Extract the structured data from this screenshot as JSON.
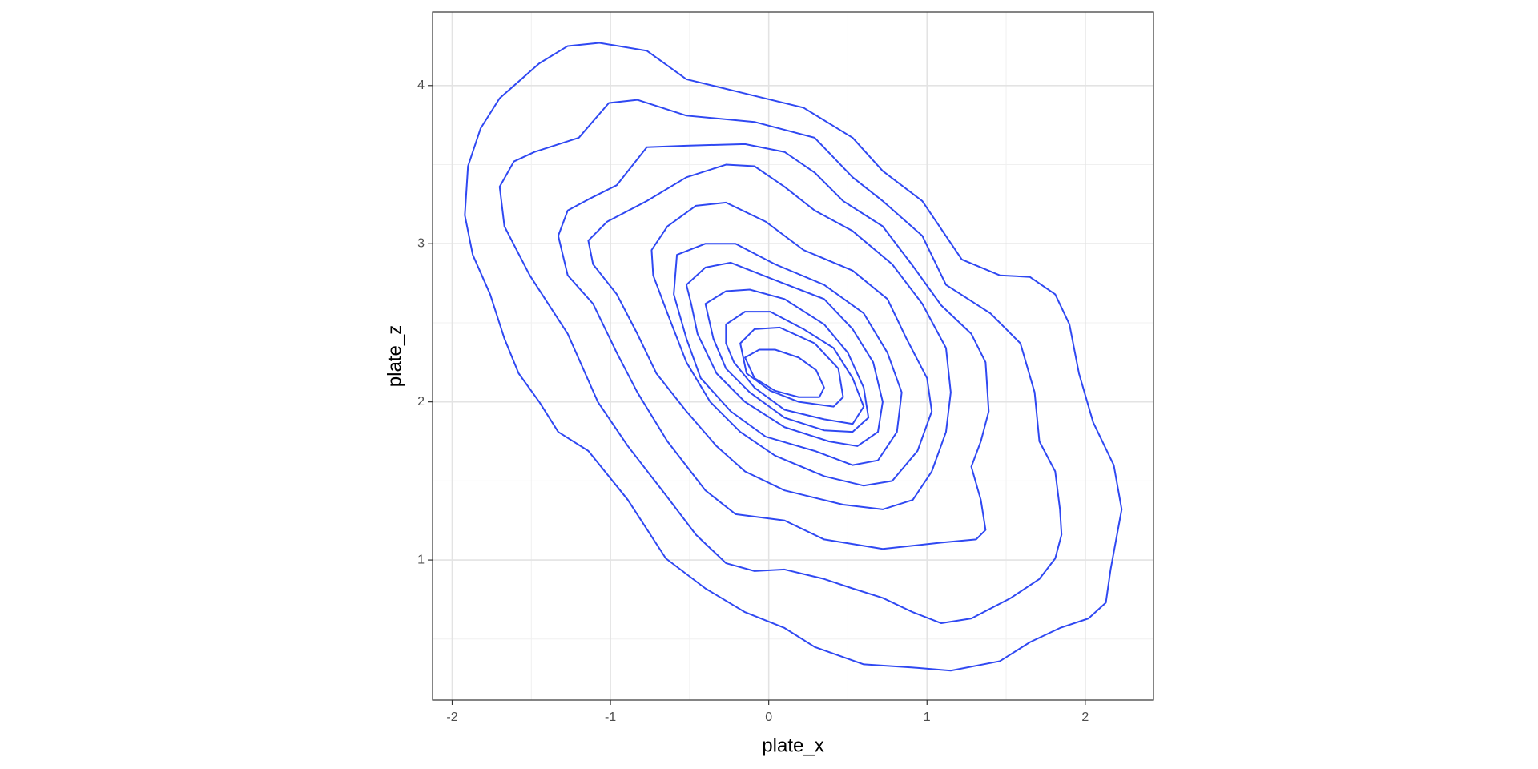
{
  "chart_data": {
    "type": "contour",
    "x_label": "plate_x",
    "y_label": "plate_z",
    "color": "#2f48f2",
    "xlim": [
      -2.124,
      2.431
    ],
    "ylim": [
      0.114,
      4.465
    ],
    "xticks": [
      -2,
      -1,
      0,
      1,
      2
    ],
    "yticks": [
      1,
      2,
      3,
      4
    ],
    "xminor": [
      -1.5,
      -0.5,
      0.5,
      1.5
    ],
    "yminor": [
      0.5,
      1.5,
      2.5,
      3.5
    ],
    "grid": true,
    "series": [
      {
        "x": [
          -1.07,
          -0.77,
          -0.52,
          -0.15,
          0.22,
          0.53,
          0.72,
          0.97,
          1.22,
          1.46,
          1.65,
          1.81,
          1.9,
          1.96,
          2.05,
          2.18,
          2.23,
          2.16,
          2.13,
          2.02,
          1.84,
          1.65,
          1.46,
          1.15,
          0.91,
          0.6,
          0.29,
          0.1,
          -0.15,
          -0.4,
          -0.65,
          -0.89,
          -1.14,
          -1.33,
          -1.45,
          -1.58,
          -1.67,
          -1.76,
          -1.87,
          -1.92,
          -1.9,
          -1.82,
          -1.7,
          -1.45,
          -1.27
        ],
        "values": [
          4.27,
          4.22,
          4.04,
          3.95,
          3.86,
          3.67,
          3.46,
          3.27,
          2.9,
          2.8,
          2.79,
          2.68,
          2.49,
          2.18,
          1.87,
          1.6,
          1.32,
          0.94,
          0.73,
          0.63,
          0.57,
          0.48,
          0.36,
          0.3,
          0.32,
          0.34,
          0.45,
          0.57,
          0.67,
          0.82,
          1.01,
          1.38,
          1.69,
          1.81,
          2.0,
          2.18,
          2.4,
          2.68,
          2.93,
          3.18,
          3.49,
          3.73,
          3.92,
          4.14,
          4.25
        ]
      },
      {
        "x": [
          -1.01,
          -0.83,
          -0.52,
          -0.09,
          0.29,
          0.53,
          0.72,
          0.97,
          1.12,
          1.4,
          1.59,
          1.68,
          1.71,
          1.81,
          1.84,
          1.85,
          1.81,
          1.71,
          1.53,
          1.28,
          1.09,
          0.91,
          0.72,
          0.53,
          0.35,
          0.1,
          -0.09,
          -0.27,
          -0.46,
          -0.65,
          -0.89,
          -1.08,
          -1.27,
          -1.51,
          -1.67,
          -1.7,
          -1.61,
          -1.48,
          -1.2
        ],
        "values": [
          3.89,
          3.91,
          3.81,
          3.77,
          3.67,
          3.42,
          3.27,
          3.05,
          2.74,
          2.56,
          2.37,
          2.06,
          1.75,
          1.56,
          1.32,
          1.16,
          1.01,
          0.88,
          0.76,
          0.63,
          0.6,
          0.67,
          0.76,
          0.82,
          0.88,
          0.94,
          0.93,
          0.98,
          1.16,
          1.41,
          1.72,
          2.0,
          2.43,
          2.8,
          3.11,
          3.36,
          3.52,
          3.58,
          3.67
        ]
      },
      {
        "x": [
          -0.77,
          -0.52,
          -0.15,
          0.1,
          0.29,
          0.47,
          0.72,
          0.91,
          1.09,
          1.28,
          1.37,
          1.39,
          1.34,
          1.28,
          1.34,
          1.37,
          1.31,
          1.09,
          0.72,
          0.35,
          0.1,
          -0.21,
          -0.4,
          -0.64,
          -0.83,
          -0.96,
          -1.11,
          -1.27,
          -1.33,
          -1.27,
          -1.14,
          -0.96
        ],
        "values": [
          3.61,
          3.62,
          3.63,
          3.58,
          3.45,
          3.27,
          3.11,
          2.86,
          2.61,
          2.43,
          2.25,
          1.94,
          1.75,
          1.59,
          1.38,
          1.19,
          1.13,
          1.11,
          1.07,
          1.13,
          1.25,
          1.29,
          1.44,
          1.75,
          2.06,
          2.31,
          2.62,
          2.8,
          3.05,
          3.21,
          3.28,
          3.37
        ]
      },
      {
        "x": [
          -0.52,
          -0.27,
          -0.09,
          0.1,
          0.29,
          0.53,
          0.78,
          0.97,
          1.12,
          1.15,
          1.12,
          1.03,
          0.91,
          0.72,
          0.47,
          0.1,
          -0.15,
          -0.33,
          -0.52,
          -0.71,
          -0.83,
          -0.96,
          -1.11,
          -1.14,
          -1.02,
          -0.77
        ],
        "values": [
          3.42,
          3.5,
          3.49,
          3.36,
          3.21,
          3.08,
          2.87,
          2.62,
          2.34,
          2.06,
          1.81,
          1.56,
          1.38,
          1.32,
          1.35,
          1.44,
          1.56,
          1.72,
          1.94,
          2.18,
          2.43,
          2.68,
          2.87,
          3.02,
          3.14,
          3.27
        ]
      },
      {
        "x": [
          -0.64,
          -0.46,
          -0.27,
          -0.02,
          0.22,
          0.53,
          0.75,
          0.87,
          1.0,
          1.03,
          0.94,
          0.78,
          0.6,
          0.35,
          0.04,
          -0.18,
          -0.37,
          -0.52,
          -0.64,
          -0.73,
          -0.74
        ],
        "values": [
          3.11,
          3.24,
          3.26,
          3.14,
          2.96,
          2.83,
          2.65,
          2.4,
          2.15,
          1.94,
          1.69,
          1.5,
          1.47,
          1.53,
          1.66,
          1.81,
          2.0,
          2.25,
          2.56,
          2.8,
          2.96
        ]
      },
      {
        "x": [
          -0.58,
          -0.4,
          -0.21,
          0.04,
          0.35,
          0.6,
          0.75,
          0.84,
          0.81,
          0.69,
          0.53,
          0.29,
          -0.02,
          -0.24,
          -0.43,
          -0.52,
          -0.6
        ],
        "values": [
          2.93,
          3.0,
          3.0,
          2.87,
          2.74,
          2.56,
          2.31,
          2.06,
          1.81,
          1.63,
          1.6,
          1.69,
          1.78,
          1.94,
          2.15,
          2.4,
          2.68
        ]
      },
      {
        "x": [
          -0.52,
          -0.4,
          -0.24,
          0.04,
          0.35,
          0.53,
          0.66,
          0.72,
          0.69,
          0.56,
          0.38,
          0.1,
          -0.15,
          -0.33,
          -0.45,
          -0.49
        ],
        "values": [
          2.74,
          2.85,
          2.88,
          2.77,
          2.65,
          2.46,
          2.25,
          2.0,
          1.81,
          1.72,
          1.75,
          1.84,
          2.0,
          2.18,
          2.43,
          2.62
        ]
      },
      {
        "x": [
          -0.4,
          -0.27,
          -0.12,
          0.1,
          0.35,
          0.5,
          0.6,
          0.63,
          0.53,
          0.35,
          0.1,
          -0.12,
          -0.27,
          -0.35
        ],
        "values": [
          2.62,
          2.7,
          2.71,
          2.65,
          2.49,
          2.31,
          2.09,
          1.9,
          1.81,
          1.82,
          1.9,
          2.06,
          2.21,
          2.4
        ]
      },
      {
        "x": [
          -0.27,
          -0.15,
          0.01,
          0.22,
          0.41,
          0.53,
          0.6,
          0.53,
          0.35,
          0.1,
          -0.09,
          -0.22,
          -0.27
        ],
        "values": [
          2.49,
          2.57,
          2.57,
          2.46,
          2.34,
          2.15,
          1.97,
          1.86,
          1.89,
          1.95,
          2.09,
          2.25,
          2.37
        ]
      },
      {
        "x": [
          -0.18,
          -0.09,
          0.07,
          0.29,
          0.44,
          0.47,
          0.41,
          0.19,
          0.01,
          -0.14
        ],
        "values": [
          2.37,
          2.46,
          2.47,
          2.37,
          2.21,
          2.03,
          1.97,
          2.0,
          2.07,
          2.18
        ]
      },
      {
        "x": [
          -0.15,
          -0.06,
          0.04,
          0.19,
          0.3,
          0.35,
          0.32,
          0.19,
          0.04,
          -0.09
        ],
        "values": [
          2.28,
          2.33,
          2.33,
          2.28,
          2.2,
          2.09,
          2.03,
          2.03,
          2.07,
          2.15
        ]
      }
    ]
  }
}
